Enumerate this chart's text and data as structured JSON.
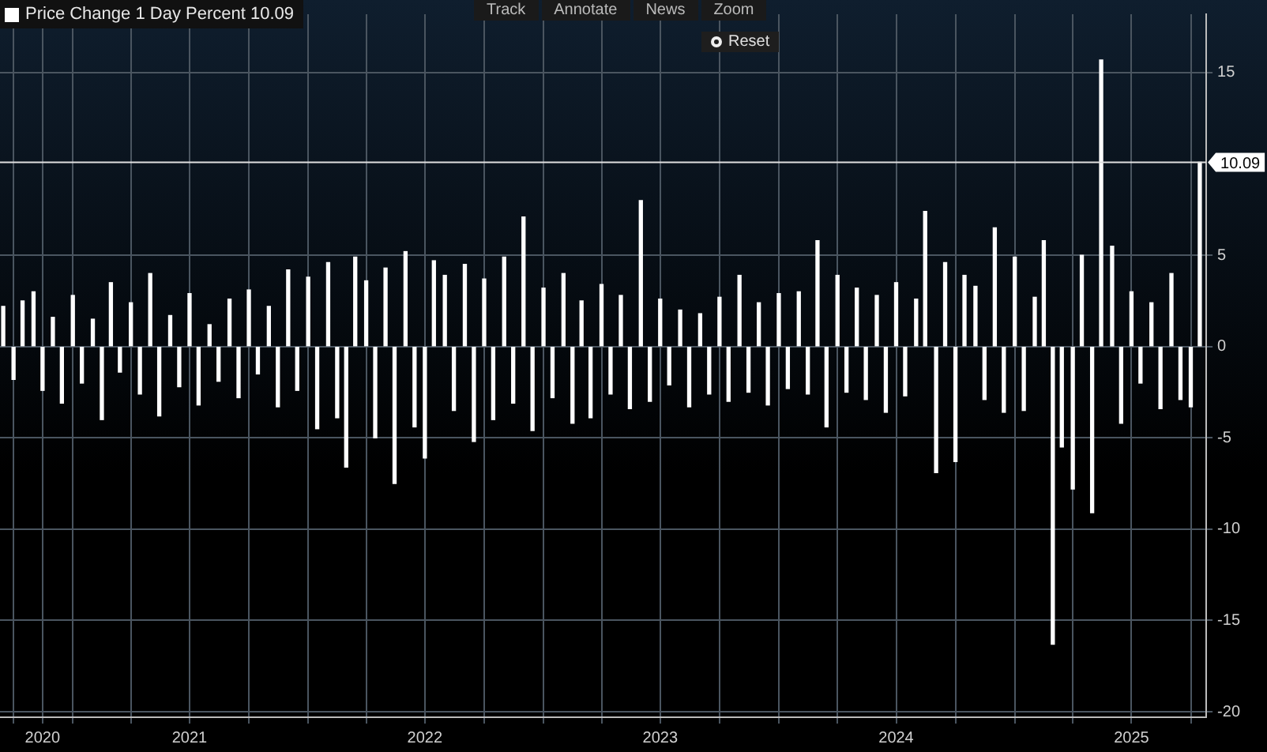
{
  "chart_data": {
    "type": "bar",
    "x": [
      "2020-09-15",
      "2020-10-01",
      "2020-10-15",
      "2020-11-01",
      "2020-11-15",
      "2020-12-01",
      "2020-12-15",
      "2021-01-01",
      "2021-01-15",
      "2021-02-01",
      "2021-02-15",
      "2021-03-01",
      "2021-03-15",
      "2021-04-01",
      "2021-04-15",
      "2021-05-01",
      "2021-05-15",
      "2021-06-01",
      "2021-06-15",
      "2021-07-01",
      "2021-07-15",
      "2021-08-01",
      "2021-08-15",
      "2021-09-01",
      "2021-09-15",
      "2021-10-01",
      "2021-10-15",
      "2021-11-01",
      "2021-11-15",
      "2021-12-01",
      "2021-12-15",
      "2022-01-01",
      "2022-01-15",
      "2022-02-01",
      "2022-02-15",
      "2022-03-01",
      "2022-03-15",
      "2022-04-01",
      "2022-04-15",
      "2022-05-01",
      "2022-05-15",
      "2022-06-01",
      "2022-06-15",
      "2022-07-01",
      "2022-07-15",
      "2022-08-01",
      "2022-08-15",
      "2022-09-01",
      "2022-09-15",
      "2022-10-01",
      "2022-10-15",
      "2022-11-01",
      "2022-11-15",
      "2022-12-01",
      "2022-12-15",
      "2023-01-01",
      "2023-01-15",
      "2023-02-01",
      "2023-02-15",
      "2023-03-01",
      "2023-03-15",
      "2023-04-01",
      "2023-04-15",
      "2023-05-01",
      "2023-05-15",
      "2023-06-01",
      "2023-06-15",
      "2023-07-01",
      "2023-07-15",
      "2023-08-01",
      "2023-08-15",
      "2023-09-01",
      "2023-09-15",
      "2023-10-01",
      "2023-10-15",
      "2023-11-01",
      "2023-11-15",
      "2023-12-01",
      "2023-12-15",
      "2024-01-01",
      "2024-01-15",
      "2024-02-01",
      "2024-02-15",
      "2024-03-01",
      "2024-03-15",
      "2024-04-01",
      "2024-04-15",
      "2024-05-01",
      "2024-05-15",
      "2024-06-01",
      "2024-06-15",
      "2024-07-01",
      "2024-07-15",
      "2024-08-01",
      "2024-08-15",
      "2024-09-01",
      "2024-09-15",
      "2024-10-01",
      "2024-10-15",
      "2024-11-01",
      "2024-11-15",
      "2024-12-01",
      "2024-12-15",
      "2025-01-01",
      "2025-01-15",
      "2025-02-01",
      "2025-02-15",
      "2025-03-01",
      "2025-03-15",
      "2025-04-01",
      "2025-04-15",
      "2025-05-01",
      "2025-05-15",
      "2025-06-01",
      "2025-06-15",
      "2025-07-01",
      "2025-07-15",
      "2025-08-01",
      "2025-08-15",
      "2025-09-01",
      "2025-09-15",
      "2025-10-01",
      "2025-10-15"
    ],
    "series": [
      {
        "name": "Price Change 1 Day Percent 10.09",
        "color": "#ffffff",
        "values": [
          2.2,
          -1.8,
          2.5,
          3.0,
          -2.4,
          1.6,
          -3.1,
          2.8,
          -2.0,
          1.5,
          -4.0,
          3.5,
          -1.4,
          2.4,
          -2.6,
          4.0,
          -3.8,
          1.7,
          -2.2,
          2.9,
          -3.2,
          1.2,
          -1.9,
          2.6,
          -2.8,
          3.1,
          -1.5,
          2.2,
          -3.3,
          4.2,
          -2.4,
          3.8,
          -4.5,
          4.6,
          -3.9,
          -6.6,
          4.9,
          3.6,
          -5.0,
          4.3,
          -7.5,
          5.2,
          -4.4,
          -6.1,
          4.7,
          3.9,
          -3.5,
          4.5,
          -5.2,
          3.7,
          -4.0,
          4.9,
          -3.1,
          7.1,
          -4.6,
          3.2,
          -2.8,
          4.0,
          -4.2,
          2.5,
          -3.9,
          3.4,
          -2.6,
          2.8,
          -3.4,
          8.0,
          -3.0,
          2.6,
          -2.1,
          2.0,
          -3.3,
          1.8,
          -2.6,
          2.7,
          -3.0,
          3.9,
          -2.5,
          2.4,
          -3.2,
          2.9,
          -2.3,
          3.0,
          -2.6,
          5.8,
          -4.4,
          3.9,
          -2.5,
          3.2,
          -2.9,
          2.8,
          -3.6,
          3.5,
          -2.7,
          2.6,
          7.4,
          -6.9,
          4.6,
          -6.3,
          3.9,
          3.3,
          -2.9,
          6.5,
          -3.6,
          4.9,
          -3.5,
          2.7,
          5.8,
          -16.3,
          -5.5,
          -7.8,
          5.0,
          -9.1,
          15.7,
          5.5,
          -4.2,
          3.0,
          -2.0,
          2.4,
          -3.4,
          4.0,
          -2.9,
          -3.3,
          10.09
        ]
      }
    ],
    "xlim": [
      "2020-09-10",
      "2025-10-25"
    ],
    "xticks": [
      {
        "value": "2020-10-01",
        "label": null
      },
      {
        "value": "2020-11-15",
        "label": "2020"
      },
      {
        "value": "2021-01-01",
        "label": null
      },
      {
        "value": "2021-04-01",
        "label": null
      },
      {
        "value": "2021-07-01",
        "label": "2021"
      },
      {
        "value": "2021-10-01",
        "label": null
      },
      {
        "value": "2022-01-01",
        "label": null
      },
      {
        "value": "2022-04-01",
        "label": null
      },
      {
        "value": "2022-07-01",
        "label": "2022"
      },
      {
        "value": "2022-10-01",
        "label": null
      },
      {
        "value": "2023-01-01",
        "label": null
      },
      {
        "value": "2023-04-01",
        "label": null
      },
      {
        "value": "2023-07-01",
        "label": "2023"
      },
      {
        "value": "2023-10-01",
        "label": null
      },
      {
        "value": "2024-01-01",
        "label": null
      },
      {
        "value": "2024-04-01",
        "label": null
      },
      {
        "value": "2024-07-01",
        "label": "2024"
      },
      {
        "value": "2024-10-01",
        "label": null
      },
      {
        "value": "2025-01-01",
        "label": null
      },
      {
        "value": "2025-04-01",
        "label": null
      },
      {
        "value": "2025-07-01",
        "label": "2025"
      },
      {
        "value": "2025-10-01",
        "label": null
      }
    ],
    "ylim": [
      -20.3,
      18.2
    ],
    "yticks": [
      -20,
      -15,
      -10,
      -5,
      0,
      5,
      15
    ],
    "ref_lines": [
      {
        "axis": "y",
        "value": 10.09,
        "label": "10.09",
        "color": "#e0e0e0"
      }
    ],
    "annotations": [
      "Track",
      "Annotate",
      "News",
      "Zoom",
      "Reset"
    ],
    "grid": true,
    "legend": "top left"
  }
}
